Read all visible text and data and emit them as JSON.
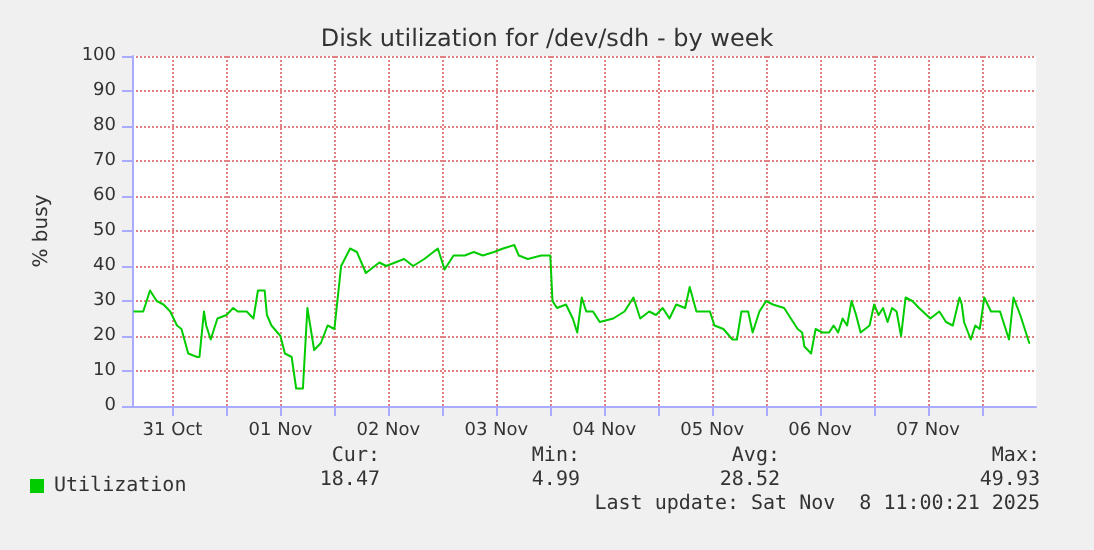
{
  "chart_data": {
    "type": "line",
    "title": "Disk utilization for /dev/sdh - by week",
    "ylabel": "% busy",
    "xlim": [
      "2025-10-31T03:00",
      "2025-11-08T12:00"
    ],
    "xticks": [
      {
        "value": "2025-10-31T12:00",
        "label": "31 Oct"
      },
      {
        "value": "2025-11-01T00:00",
        "label": null
      },
      {
        "value": "2025-11-01T12:00",
        "label": "01 Nov"
      },
      {
        "value": "2025-11-02T00:00",
        "label": null
      },
      {
        "value": "2025-11-02T12:00",
        "label": "02 Nov"
      },
      {
        "value": "2025-11-03T00:00",
        "label": null
      },
      {
        "value": "2025-11-03T12:00",
        "label": "03 Nov"
      },
      {
        "value": "2025-11-04T00:00",
        "label": null
      },
      {
        "value": "2025-11-04T12:00",
        "label": "04 Nov"
      },
      {
        "value": "2025-11-05T00:00",
        "label": null
      },
      {
        "value": "2025-11-05T12:00",
        "label": "05 Nov"
      },
      {
        "value": "2025-11-06T00:00",
        "label": null
      },
      {
        "value": "2025-11-06T12:00",
        "label": "06 Nov"
      },
      {
        "value": "2025-11-07T00:00",
        "label": null
      },
      {
        "value": "2025-11-07T12:00",
        "label": "07 Nov"
      },
      {
        "value": "2025-11-08T00:00",
        "label": null
      }
    ],
    "ylim": [
      0,
      100
    ],
    "yticks": [
      0,
      10,
      20,
      30,
      40,
      50,
      60,
      70,
      80,
      90,
      100
    ],
    "grid": true,
    "legend": "bottom left",
    "marker": "none",
    "line_style": "solid",
    "x": [
      "2025-10-31T03:30",
      "2025-10-31T05:30",
      "2025-10-31T07:00",
      "2025-10-31T08:30",
      "2025-10-31T10:00",
      "2025-10-31T11:30",
      "2025-10-31T13:00",
      "2025-10-31T14:00",
      "2025-10-31T15:30",
      "2025-10-31T17:30",
      "2025-10-31T18:00",
      "2025-10-31T19:00",
      "2025-10-31T19:30",
      "2025-10-31T20:30",
      "2025-10-31T22:00",
      "2025-11-01T00:00",
      "2025-11-01T01:30",
      "2025-11-01T02:30",
      "2025-11-01T04:30",
      "2025-11-01T06:00",
      "2025-11-01T07:00",
      "2025-11-01T08:30",
      "2025-11-01T09:00",
      "2025-11-01T10:00",
      "2025-11-01T12:00",
      "2025-11-01T13:00",
      "2025-11-01T14:30",
      "2025-11-01T15:30",
      "2025-11-01T17:00",
      "2025-11-01T18:00",
      "2025-11-01T19:30",
      "2025-11-01T21:00",
      "2025-11-01T22:30",
      "2025-11-02T00:00",
      "2025-11-02T01:30",
      "2025-11-02T03:30",
      "2025-11-02T05:00",
      "2025-11-02T07:00",
      "2025-11-02T10:00",
      "2025-11-02T11:30",
      "2025-11-02T15:30",
      "2025-11-02T17:30",
      "2025-11-02T20:00",
      "2025-11-02T23:00",
      "2025-11-03T00:30",
      "2025-11-03T02:30",
      "2025-11-03T05:00",
      "2025-11-03T07:00",
      "2025-11-03T09:00",
      "2025-11-03T11:30",
      "2025-11-03T13:30",
      "2025-11-03T16:00",
      "2025-11-03T17:00",
      "2025-11-03T19:00",
      "2025-11-03T22:00",
      "2025-11-04T00:00",
      "2025-11-04T00:30",
      "2025-11-04T01:30",
      "2025-11-04T03:30",
      "2025-11-04T05:00",
      "2025-11-04T06:00",
      "2025-11-04T07:00",
      "2025-11-04T08:00",
      "2025-11-04T09:30",
      "2025-11-04T11:00",
      "2025-11-04T14:00",
      "2025-11-04T16:30",
      "2025-11-04T18:30",
      "2025-11-04T20:00",
      "2025-11-04T22:00",
      "2025-11-04T23:30",
      "2025-11-05T01:00",
      "2025-11-05T02:30",
      "2025-11-05T04:00",
      "2025-11-05T06:00",
      "2025-11-05T07:00",
      "2025-11-05T08:30",
      "2025-11-05T10:00",
      "2025-11-05T11:30",
      "2025-11-05T12:30",
      "2025-11-05T14:30",
      "2025-11-05T16:30",
      "2025-11-05T17:30",
      "2025-11-05T18:30",
      "2025-11-05T20:00",
      "2025-11-05T21:00",
      "2025-11-05T22:30",
      "2025-11-06T00:00",
      "2025-11-06T01:30",
      "2025-11-06T04:00",
      "2025-11-06T05:30",
      "2025-11-06T07:00",
      "2025-11-06T08:00",
      "2025-11-06T08:30",
      "2025-11-06T10:00",
      "2025-11-06T11:00",
      "2025-11-06T12:30",
      "2025-11-06T14:00",
      "2025-11-06T15:00",
      "2025-11-06T16:00",
      "2025-11-06T17:00",
      "2025-11-06T18:00",
      "2025-11-06T19:00",
      "2025-11-06T20:00",
      "2025-11-06T21:00",
      "2025-11-06T23:00",
      "2025-11-07T00:00",
      "2025-11-07T01:00",
      "2025-11-07T02:00",
      "2025-11-07T03:00",
      "2025-11-07T04:00",
      "2025-11-07T05:00",
      "2025-11-07T06:00",
      "2025-11-07T07:00",
      "2025-11-07T08:30",
      "2025-11-07T10:00",
      "2025-11-07T12:30",
      "2025-11-07T13:30",
      "2025-11-07T14:30",
      "2025-11-07T16:00",
      "2025-11-07T17:30",
      "2025-11-07T19:00",
      "2025-11-07T19:30",
      "2025-11-07T20:00",
      "2025-11-07T21:30",
      "2025-11-07T22:30",
      "2025-11-07T23:30",
      "2025-11-08T00:30",
      "2025-11-08T02:00",
      "2025-11-08T04:00",
      "2025-11-08T05:00",
      "2025-11-08T06:00",
      "2025-11-08T07:00",
      "2025-11-08T08:30",
      "2025-11-08T10:30"
    ],
    "series": [
      {
        "name": "Utilization",
        "color": "#00cc00",
        "values": [
          27,
          27,
          33,
          30,
          29,
          27,
          23,
          22,
          15,
          14,
          14,
          27,
          23,
          19,
          25,
          26,
          28,
          27,
          27,
          25,
          33,
          33,
          26,
          23,
          20,
          15,
          14,
          5,
          5,
          28,
          16,
          18,
          23,
          22,
          40,
          45,
          44,
          38,
          41,
          40,
          42,
          40,
          42,
          45,
          39,
          43,
          43,
          44,
          43,
          44,
          45,
          46,
          43,
          42,
          43,
          43,
          30,
          28,
          29,
          25,
          21,
          31,
          27,
          27,
          24,
          25,
          27,
          31,
          25,
          27,
          26,
          28,
          25,
          29,
          28,
          34,
          27,
          27,
          27,
          23,
          22,
          19,
          19,
          27,
          27,
          21,
          27,
          30,
          29,
          28,
          25,
          22,
          21,
          17,
          15,
          22,
          21,
          21,
          23,
          21,
          25,
          23,
          30,
          26,
          21,
          23,
          29,
          26,
          28,
          24,
          28,
          27,
          20,
          31,
          30,
          28,
          25,
          26,
          27,
          24,
          23,
          31,
          29,
          24,
          19,
          23,
          22,
          31,
          27,
          27,
          23,
          19,
          31,
          26,
          18
        ]
      }
    ],
    "annotations": [
      "Cur:",
      "Min:",
      "Avg:",
      "Max:",
      "18.47",
      "4.99",
      "28.52",
      "49.93",
      "Last update: Sat Nov  8 11:00:21 2025"
    ]
  }
}
